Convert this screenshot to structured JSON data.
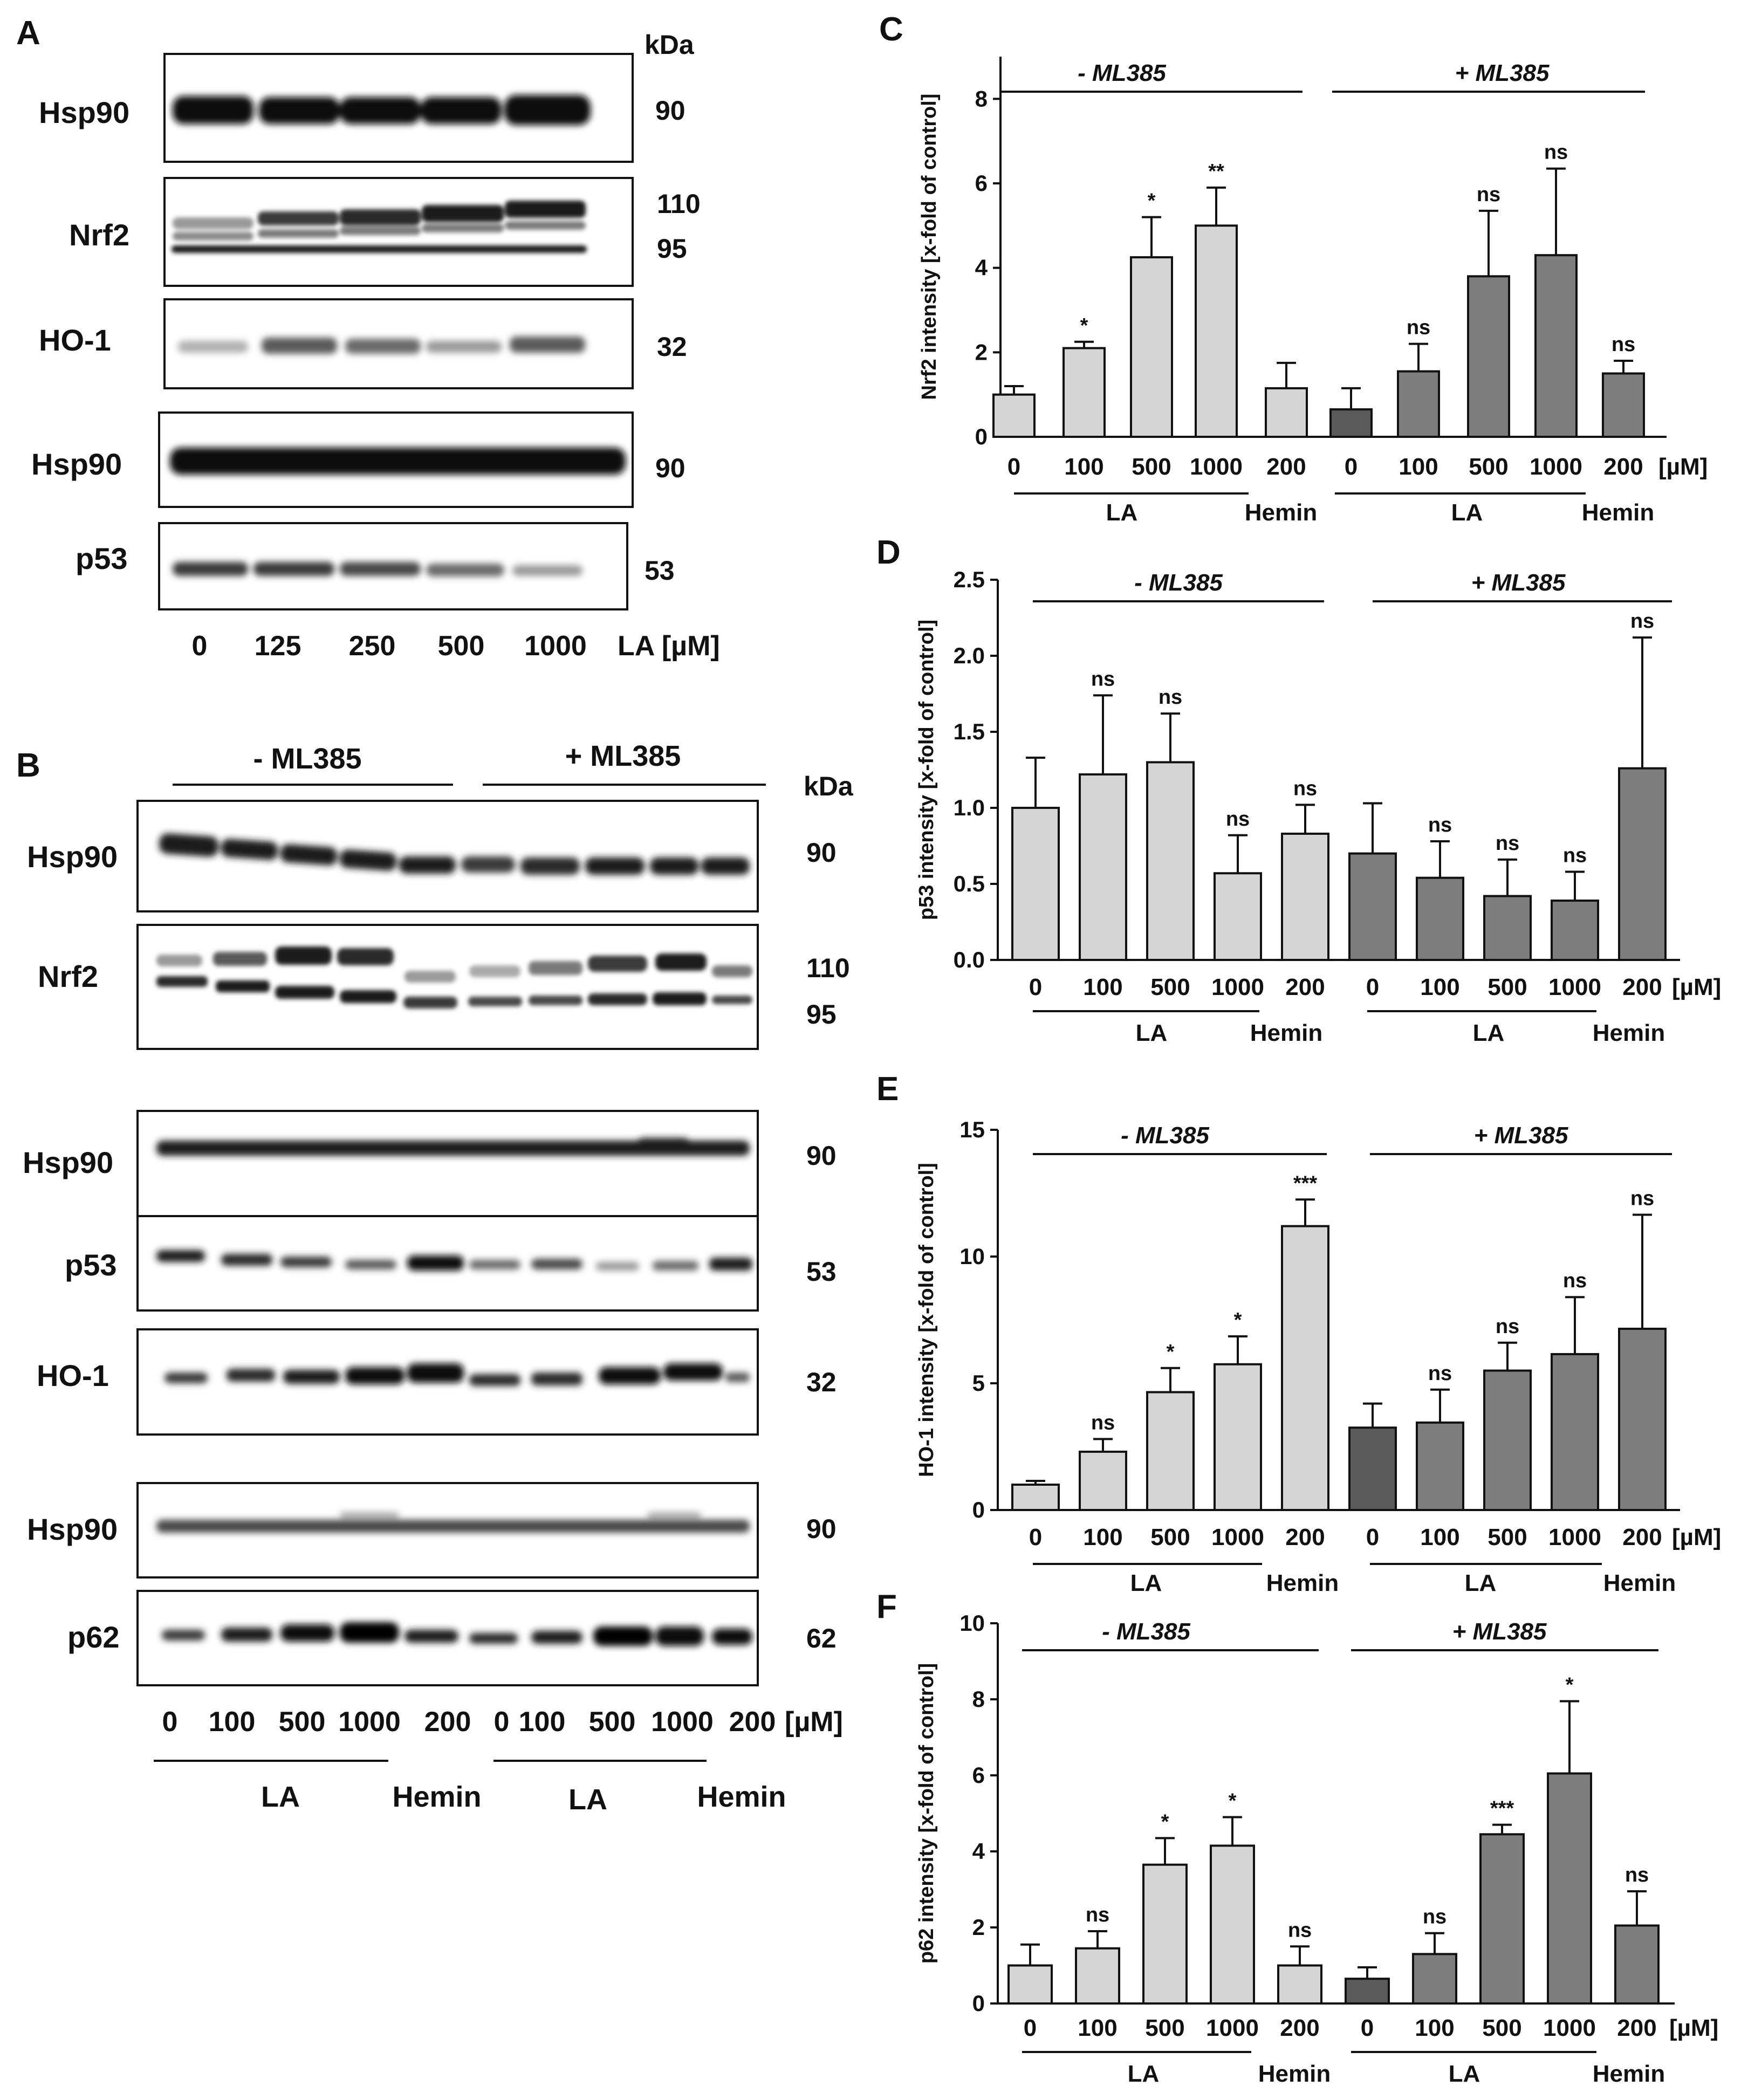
{
  "panels": {
    "A": "A",
    "B": "B",
    "C": "C",
    "D": "D",
    "E": "E",
    "F": "F"
  },
  "panel_a": {
    "kda_header": "kDa",
    "rows": [
      {
        "label": "Hsp90",
        "kda": [
          "90"
        ]
      },
      {
        "label": "Nrf2",
        "kda": [
          "110",
          "95"
        ]
      },
      {
        "label": "HO-1",
        "kda": [
          "32"
        ]
      },
      {
        "label": "Hsp90",
        "kda": [
          "90"
        ]
      },
      {
        "label": "p53",
        "kda": [
          "53"
        ]
      }
    ],
    "lanes": [
      "0",
      "125",
      "250",
      "500",
      "1000"
    ],
    "lane_unit": "LA [µM]"
  },
  "panel_b": {
    "minus_group": "- ML385",
    "plus_group": "+ ML385",
    "kda_header": "kDa",
    "rows": [
      {
        "label": "Hsp90",
        "kda": [
          "90"
        ]
      },
      {
        "label": "Nrf2",
        "kda": [
          "110",
          "95"
        ]
      },
      {
        "label": "Hsp90",
        "kda": [
          "90"
        ]
      },
      {
        "label": "p53",
        "kda": [
          "53"
        ]
      },
      {
        "label": "HO-1",
        "kda": [
          "32"
        ]
      },
      {
        "label": "Hsp90",
        "kda": [
          "90"
        ]
      },
      {
        "label": "p62",
        "kda": [
          "62"
        ]
      }
    ],
    "lanes": [
      "0",
      "100",
      "500",
      "1000",
      "200",
      "0",
      "100",
      "500",
      "1000",
      "200"
    ],
    "lane_unit": "[µM]",
    "la_label_1": "LA",
    "hemin_label_1": "Hemin",
    "la_label_2": "LA",
    "hemin_label_2": "Hemin"
  },
  "chart_data": [
    {
      "panel": "C",
      "type": "bar",
      "ylabel": "Nrf2 intensity [x-fold of control]",
      "ylim": [
        0,
        9
      ],
      "yticks": [
        0,
        2,
        4,
        6,
        8
      ],
      "categories": [
        "0",
        "100",
        "500",
        "1000",
        "200",
        "0",
        "100",
        "500",
        "1000",
        "200"
      ],
      "unit": "[µM]",
      "group_minus": "- ML385",
      "group_plus": "+ ML385",
      "treatment_labels": [
        "LA",
        "Hemin",
        "LA",
        "Hemin"
      ],
      "values": [
        1.0,
        2.1,
        4.25,
        5.0,
        1.15,
        0.65,
        1.55,
        3.8,
        4.3,
        1.5
      ],
      "errors": [
        0.2,
        0.15,
        0.95,
        0.9,
        0.6,
        0.5,
        0.65,
        1.55,
        2.05,
        0.3
      ],
      "significance": [
        "",
        "*",
        "*",
        "**",
        "",
        "",
        "ns",
        "ns",
        "ns",
        "ns"
      ],
      "colors": [
        "#d5d5d5",
        "#d5d5d5",
        "#d5d5d5",
        "#d5d5d5",
        "#d5d5d5",
        "#5a5a5a",
        "#7d7d7d",
        "#7d7d7d",
        "#7d7d7d",
        "#7d7d7d"
      ]
    },
    {
      "panel": "D",
      "type": "bar",
      "ylabel": "p53 intensity [x-fold of control]",
      "ylim": [
        0,
        2.5
      ],
      "yticks": [
        0.0,
        0.5,
        1.0,
        1.5,
        2.0,
        2.5
      ],
      "ytick_labels": [
        "0.0",
        "0.5",
        "1.0",
        "1.5",
        "2.0",
        "2.5"
      ],
      "categories": [
        "0",
        "100",
        "500",
        "1000",
        "200",
        "0",
        "100",
        "500",
        "1000",
        "200"
      ],
      "unit": "[µM]",
      "group_minus": "- ML385",
      "group_plus": "+ ML385",
      "treatment_labels": [
        "LA",
        "Hemin",
        "LA",
        "Hemin"
      ],
      "values": [
        1.0,
        1.22,
        1.3,
        0.57,
        0.83,
        0.7,
        0.54,
        0.42,
        0.39,
        1.26
      ],
      "errors": [
        0.33,
        0.52,
        0.32,
        0.25,
        0.19,
        0.33,
        0.24,
        0.24,
        0.19,
        0.86
      ],
      "significance": [
        "",
        "ns",
        "ns",
        "ns",
        "ns",
        "",
        "ns",
        "ns",
        "ns",
        "ns"
      ],
      "colors": [
        "#d5d5d5",
        "#d5d5d5",
        "#d5d5d5",
        "#d5d5d5",
        "#d5d5d5",
        "#7d7d7d",
        "#7d7d7d",
        "#7d7d7d",
        "#7d7d7d",
        "#7d7d7d"
      ]
    },
    {
      "panel": "E",
      "type": "bar",
      "ylabel": "HO-1 intensity [x-fold of control]",
      "ylim": [
        0,
        15
      ],
      "yticks": [
        0,
        5,
        10,
        15
      ],
      "categories": [
        "0",
        "100",
        "500",
        "1000",
        "200",
        "0",
        "100",
        "500",
        "1000",
        "200"
      ],
      "unit": "[µM]",
      "group_minus": "- ML385",
      "group_plus": "+ ML385",
      "treatment_labels": [
        "LA",
        "Hemin",
        "LA",
        "Hemin"
      ],
      "values": [
        1.0,
        2.3,
        4.65,
        5.75,
        11.2,
        3.25,
        3.45,
        5.5,
        6.15,
        7.15
      ],
      "errors": [
        0.15,
        0.5,
        0.95,
        1.1,
        1.05,
        0.95,
        1.3,
        1.1,
        2.25,
        4.5
      ],
      "significance": [
        "",
        "ns",
        "*",
        "*",
        "***",
        "",
        "ns",
        "ns",
        "ns",
        "ns"
      ],
      "colors": [
        "#d5d5d5",
        "#d5d5d5",
        "#d5d5d5",
        "#d5d5d5",
        "#d5d5d5",
        "#5a5a5a",
        "#7d7d7d",
        "#7d7d7d",
        "#7d7d7d",
        "#7d7d7d"
      ]
    },
    {
      "panel": "F",
      "type": "bar",
      "ylabel": "p62 intensity [x-fold of control]",
      "ylim": [
        0,
        10
      ],
      "yticks": [
        0,
        2,
        4,
        6,
        8,
        10
      ],
      "categories": [
        "0",
        "100",
        "500",
        "1000",
        "200",
        "0",
        "100",
        "500",
        "1000",
        "200"
      ],
      "unit": "[µM]",
      "group_minus": "- ML385",
      "group_plus": "+ ML385",
      "treatment_labels": [
        "LA",
        "Hemin",
        "LA",
        "Hemin"
      ],
      "values": [
        1.0,
        1.45,
        3.65,
        4.15,
        1.0,
        0.65,
        1.3,
        4.45,
        6.05,
        2.05
      ],
      "errors": [
        0.55,
        0.45,
        0.7,
        0.75,
        0.5,
        0.3,
        0.55,
        0.25,
        1.9,
        0.9
      ],
      "significance": [
        "",
        "ns",
        "*",
        "*",
        "ns",
        "",
        "ns",
        "***",
        "*",
        "ns"
      ],
      "colors": [
        "#d5d5d5",
        "#d5d5d5",
        "#d5d5d5",
        "#d5d5d5",
        "#d5d5d5",
        "#5a5a5a",
        "#7d7d7d",
        "#7d7d7d",
        "#7d7d7d",
        "#7d7d7d"
      ]
    }
  ]
}
